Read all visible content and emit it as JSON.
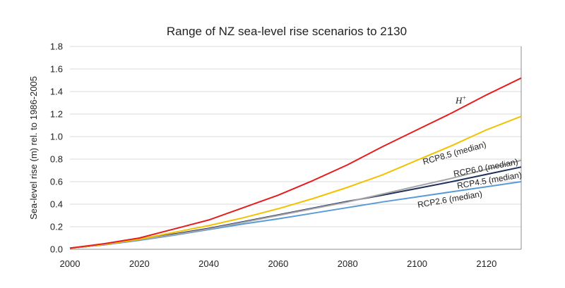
{
  "chart_data": {
    "type": "line",
    "title": "Range of NZ sea-level rise scenarios to 2130",
    "xlabel": "",
    "ylabel": "Sea-level rise (m) rel. to 1986-2005",
    "xlim": [
      2000,
      2130
    ],
    "ylim": [
      0,
      1.8
    ],
    "x_ticks": [
      "2000",
      "2020",
      "2040",
      "2060",
      "2080",
      "2100",
      "2120"
    ],
    "y_ticks": [
      "0.0",
      "0.2",
      "0.4",
      "0.6",
      "0.8",
      "1.0",
      "1.2",
      "1.4",
      "1.6",
      "1.8"
    ],
    "grid": "horizontal",
    "legend": "none (inline labels)",
    "series": [
      {
        "name": "H+",
        "color": "#e41e1e",
        "x": [
          2000,
          2010,
          2020,
          2030,
          2040,
          2050,
          2060,
          2070,
          2080,
          2090,
          2100,
          2110,
          2120,
          2130
        ],
        "values": [
          0.01,
          0.05,
          0.1,
          0.18,
          0.26,
          0.37,
          0.48,
          0.61,
          0.75,
          0.91,
          1.06,
          1.21,
          1.37,
          1.52
        ]
      },
      {
        "name": "RCP8.5 (median)",
        "color": "#f2c200",
        "x": [
          2000,
          2010,
          2020,
          2030,
          2040,
          2050,
          2060,
          2070,
          2080,
          2090,
          2100,
          2110,
          2120,
          2130
        ],
        "values": [
          0.01,
          0.045,
          0.09,
          0.15,
          0.21,
          0.28,
          0.36,
          0.45,
          0.55,
          0.66,
          0.79,
          0.92,
          1.06,
          1.18
        ]
      },
      {
        "name": "RCP6.0 (median)",
        "color": "#a6a6a6",
        "x": [
          2000,
          2010,
          2020,
          2030,
          2040,
          2050,
          2060,
          2070,
          2080,
          2090,
          2100,
          2110,
          2120,
          2130
        ],
        "values": [
          0.01,
          0.04,
          0.085,
          0.13,
          0.18,
          0.24,
          0.3,
          0.36,
          0.42,
          0.49,
          0.56,
          0.63,
          0.71,
          0.79
        ]
      },
      {
        "name": "RCP4.5 (median)",
        "color": "#1f2f5c",
        "x": [
          2000,
          2010,
          2020,
          2030,
          2040,
          2050,
          2060,
          2070,
          2080,
          2090,
          2100,
          2110,
          2120,
          2130
        ],
        "values": [
          0.01,
          0.04,
          0.085,
          0.135,
          0.185,
          0.245,
          0.305,
          0.365,
          0.425,
          0.48,
          0.54,
          0.6,
          0.665,
          0.73
        ]
      },
      {
        "name": "RCP2.6 (median)",
        "color": "#5b9bd5",
        "x": [
          2000,
          2010,
          2020,
          2030,
          2040,
          2050,
          2060,
          2070,
          2080,
          2090,
          2100,
          2110,
          2120,
          2130
        ],
        "values": [
          0.01,
          0.04,
          0.08,
          0.125,
          0.175,
          0.225,
          0.27,
          0.32,
          0.37,
          0.42,
          0.465,
          0.51,
          0.555,
          0.6
        ]
      }
    ],
    "labels": {
      "hplus_main": "H",
      "hplus_sup": "+",
      "rcp85": "RCP8.5 (median)",
      "rcp60": "RCP6.0 (median)",
      "rcp45": "RCP4.5 (median)",
      "rcp26": "RCP2.6 (median)"
    }
  }
}
